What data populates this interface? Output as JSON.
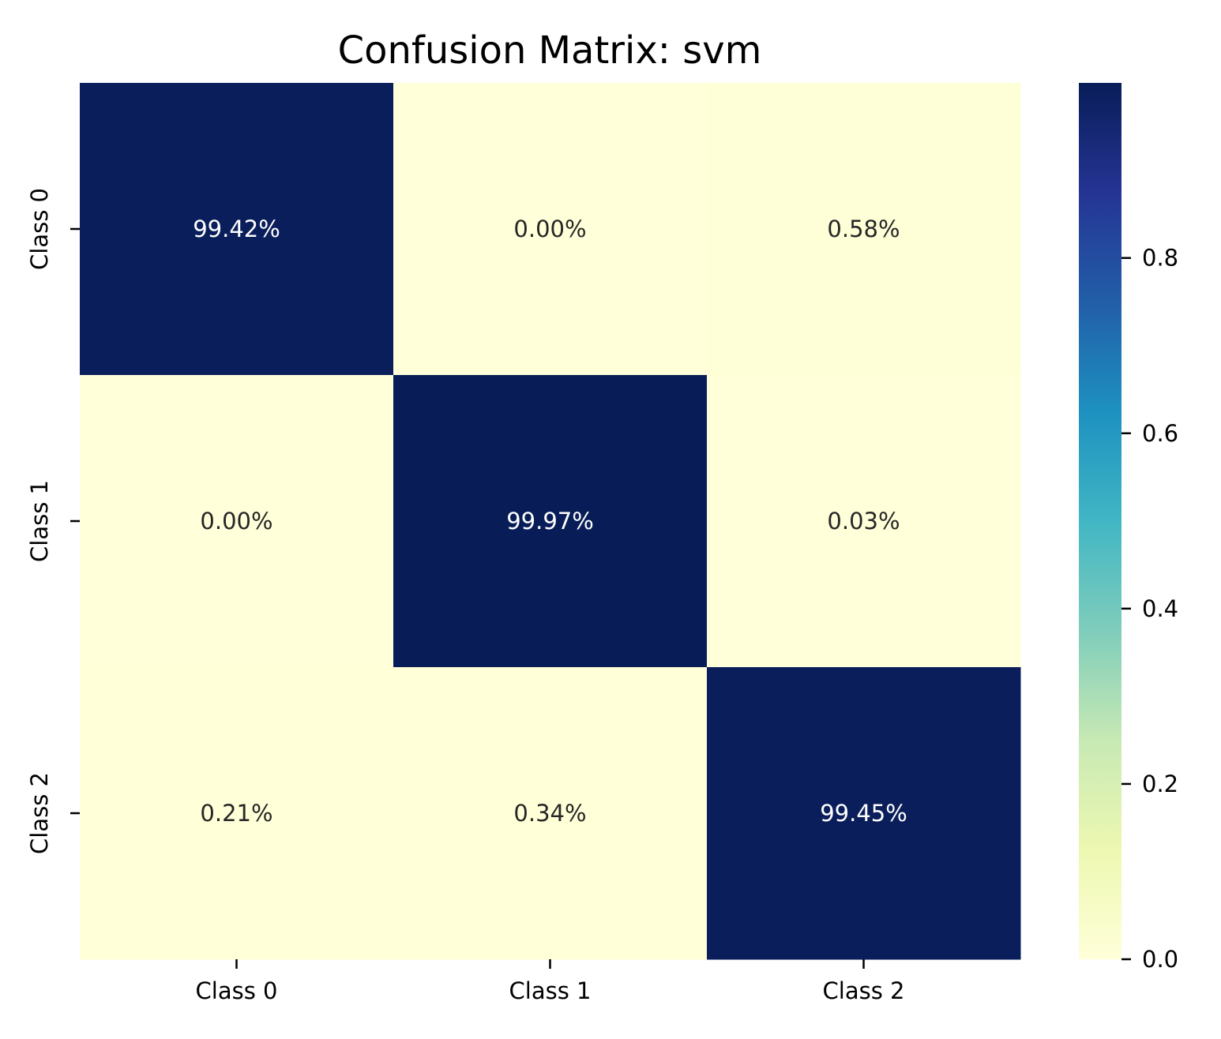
{
  "colors": {
    "low": "#ffffd9",
    "high": "#081d58",
    "text_dark": "#262626",
    "text_light": "#ffffff",
    "axis": "#000000"
  },
  "colorbar": {
    "colormap": "YlGnBu",
    "ticks": [
      {
        "value": 0.0,
        "label": "0.0"
      },
      {
        "value": 0.2,
        "label": "0.2"
      },
      {
        "value": 0.4,
        "label": "0.4"
      },
      {
        "value": 0.6,
        "label": "0.6"
      },
      {
        "value": 0.8,
        "label": "0.8"
      }
    ],
    "range": [
      0,
      0.9997
    ]
  },
  "chart_data": {
    "type": "heatmap",
    "title": "Confusion Matrix: svm",
    "xlabel": "",
    "ylabel": "",
    "x_categories": [
      "Class 0",
      "Class 1",
      "Class 2"
    ],
    "y_categories": [
      "Class 0",
      "Class 1",
      "Class 2"
    ],
    "values": [
      [
        0.9942,
        0.0,
        0.0058
      ],
      [
        0.0,
        0.9997,
        0.0003
      ],
      [
        0.0021,
        0.0034,
        0.9945
      ]
    ],
    "labels": [
      [
        "99.42%",
        "0.00%",
        "0.58%"
      ],
      [
        "0.00%",
        "99.97%",
        "0.03%"
      ],
      [
        "0.21%",
        "0.34%",
        "99.45%"
      ]
    ],
    "grid": false,
    "colorbar_position": "right"
  }
}
